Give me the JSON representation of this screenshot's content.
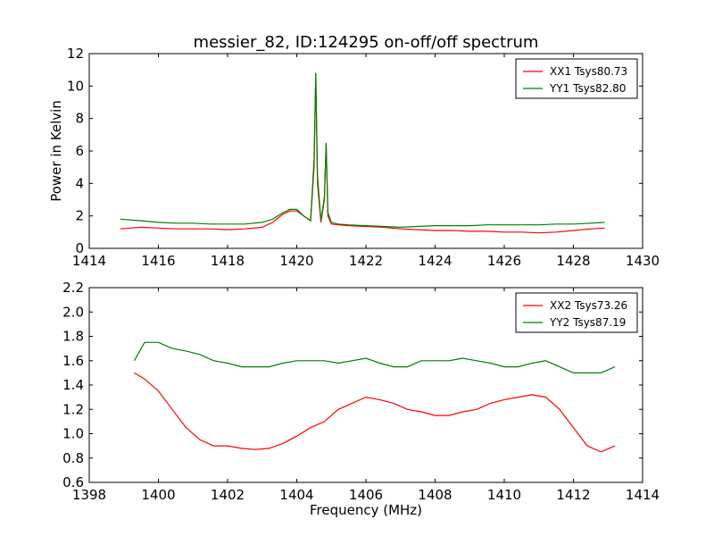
{
  "chart_data": [
    {
      "type": "line",
      "title": "messier_82, ID:124295 on-off/off spectrum",
      "xlabel": "",
      "ylabel": "Power in Kelvin",
      "xlim": [
        1414,
        1430
      ],
      "ylim": [
        0,
        12
      ],
      "xticks": [
        1414,
        1416,
        1418,
        1420,
        1422,
        1424,
        1426,
        1428,
        1430
      ],
      "yticks": [
        0,
        2,
        4,
        6,
        8,
        10,
        12
      ],
      "grid": false,
      "legend_position": "top-right",
      "series": [
        {
          "name": "XX1 Tsys80.73",
          "color": "#ff0000",
          "x": [
            1414.9,
            1415.5,
            1416.0,
            1416.5,
            1417.0,
            1417.5,
            1418.0,
            1418.5,
            1419.0,
            1419.3,
            1419.6,
            1419.8,
            1420.0,
            1420.2,
            1420.4,
            1420.5,
            1420.55,
            1420.6,
            1420.7,
            1420.8,
            1420.85,
            1420.9,
            1421.0,
            1421.2,
            1421.5,
            1422.0,
            1422.5,
            1423.0,
            1423.5,
            1424.0,
            1424.5,
            1425.0,
            1425.5,
            1426.0,
            1426.5,
            1427.0,
            1427.5,
            1428.0,
            1428.5,
            1428.9
          ],
          "y": [
            1.2,
            1.3,
            1.25,
            1.2,
            1.2,
            1.2,
            1.15,
            1.2,
            1.3,
            1.6,
            2.1,
            2.3,
            2.3,
            2.0,
            1.7,
            5.0,
            10.8,
            4.0,
            1.6,
            3.0,
            6.4,
            2.0,
            1.5,
            1.45,
            1.4,
            1.35,
            1.3,
            1.2,
            1.15,
            1.1,
            1.1,
            1.05,
            1.05,
            1.0,
            1.0,
            0.95,
            1.0,
            1.1,
            1.2,
            1.25
          ]
        },
        {
          "name": "YY1 Tsys82.80",
          "color": "#008000",
          "x": [
            1414.9,
            1415.5,
            1416.0,
            1416.5,
            1417.0,
            1417.5,
            1418.0,
            1418.5,
            1419.0,
            1419.3,
            1419.6,
            1419.8,
            1420.0,
            1420.2,
            1420.4,
            1420.5,
            1420.55,
            1420.6,
            1420.7,
            1420.8,
            1420.85,
            1420.9,
            1421.0,
            1421.2,
            1421.5,
            1422.0,
            1422.5,
            1423.0,
            1423.5,
            1424.0,
            1424.5,
            1425.0,
            1425.5,
            1426.0,
            1426.5,
            1427.0,
            1427.5,
            1428.0,
            1428.5,
            1428.9
          ],
          "y": [
            1.8,
            1.7,
            1.6,
            1.55,
            1.55,
            1.5,
            1.5,
            1.5,
            1.6,
            1.8,
            2.2,
            2.4,
            2.4,
            2.0,
            1.7,
            5.5,
            10.8,
            4.5,
            1.7,
            3.2,
            6.5,
            2.2,
            1.6,
            1.5,
            1.45,
            1.4,
            1.35,
            1.3,
            1.35,
            1.4,
            1.4,
            1.4,
            1.45,
            1.45,
            1.45,
            1.45,
            1.5,
            1.5,
            1.55,
            1.6
          ]
        }
      ]
    },
    {
      "type": "line",
      "title": "",
      "xlabel": "Frequency (MHz)",
      "ylabel": "",
      "xlim": [
        1398,
        1414
      ],
      "ylim": [
        0.6,
        2.2
      ],
      "xticks": [
        1398,
        1400,
        1402,
        1404,
        1406,
        1408,
        1410,
        1412,
        1414
      ],
      "yticks": [
        0.6,
        0.8,
        1.0,
        1.2,
        1.4,
        1.6,
        1.8,
        2.0,
        2.2
      ],
      "grid": false,
      "legend_position": "top-right",
      "series": [
        {
          "name": "XX2 Tsys73.26",
          "color": "#ff0000",
          "x": [
            1399.3,
            1399.6,
            1400.0,
            1400.4,
            1400.8,
            1401.2,
            1401.6,
            1402.0,
            1402.4,
            1402.8,
            1403.2,
            1403.6,
            1404.0,
            1404.4,
            1404.8,
            1405.2,
            1405.6,
            1406.0,
            1406.4,
            1406.8,
            1407.2,
            1407.6,
            1408.0,
            1408.4,
            1408.8,
            1409.2,
            1409.6,
            1410.0,
            1410.4,
            1410.8,
            1411.2,
            1411.6,
            1412.0,
            1412.4,
            1412.8,
            1413.2
          ],
          "y": [
            1.5,
            1.45,
            1.35,
            1.2,
            1.05,
            0.95,
            0.9,
            0.9,
            0.88,
            0.87,
            0.88,
            0.92,
            0.98,
            1.05,
            1.1,
            1.2,
            1.25,
            1.3,
            1.28,
            1.25,
            1.2,
            1.18,
            1.15,
            1.15,
            1.18,
            1.2,
            1.25,
            1.28,
            1.3,
            1.32,
            1.3,
            1.2,
            1.05,
            0.9,
            0.85,
            0.9
          ]
        },
        {
          "name": "YY2 Tsys87.19",
          "color": "#008000",
          "x": [
            1399.3,
            1399.6,
            1400.0,
            1400.4,
            1400.8,
            1401.2,
            1401.6,
            1402.0,
            1402.4,
            1402.8,
            1403.2,
            1403.6,
            1404.0,
            1404.4,
            1404.8,
            1405.2,
            1405.6,
            1406.0,
            1406.4,
            1406.8,
            1407.2,
            1407.6,
            1408.0,
            1408.4,
            1408.8,
            1409.2,
            1409.6,
            1410.0,
            1410.4,
            1410.8,
            1411.2,
            1411.6,
            1412.0,
            1412.4,
            1412.8,
            1413.2
          ],
          "y": [
            1.6,
            1.75,
            1.75,
            1.7,
            1.68,
            1.65,
            1.6,
            1.58,
            1.55,
            1.55,
            1.55,
            1.58,
            1.6,
            1.6,
            1.6,
            1.58,
            1.6,
            1.62,
            1.58,
            1.55,
            1.55,
            1.6,
            1.6,
            1.6,
            1.62,
            1.6,
            1.58,
            1.55,
            1.55,
            1.58,
            1.6,
            1.55,
            1.5,
            1.5,
            1.5,
            1.55
          ]
        }
      ]
    }
  ]
}
